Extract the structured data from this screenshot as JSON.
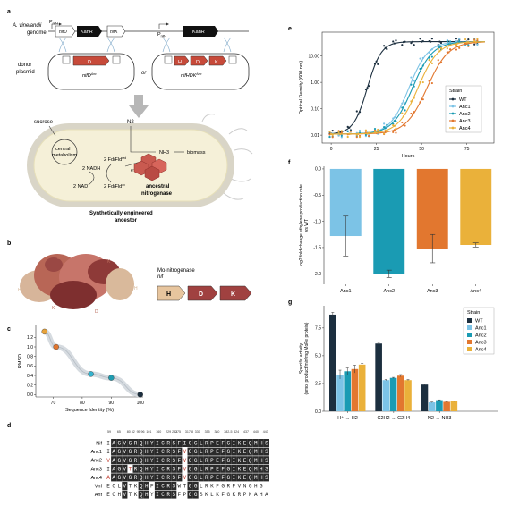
{
  "panel_letters": {
    "a": "a",
    "b": "b",
    "c": "c",
    "d": "d",
    "e": "e",
    "f": "f",
    "g": "g"
  },
  "panel_a": {
    "organism": "A. vinelandii",
    "genome_label": "genome",
    "donor": "donor",
    "plasmid": "plasmid",
    "promoter": "P",
    "promoter_sub": "nifH",
    "gene_nifU": "nifU",
    "gene_kanr": "KanR",
    "gene_nifK": "nifK",
    "gene_D": "D",
    "gene_H": "H",
    "gene_K": "K",
    "plasmid_left": "nifD",
    "plasmid_left_sup": "Anc",
    "plasmid_right": "nifHDK",
    "plasmid_right_sup": "Anc",
    "or_label": "or",
    "sucrose": "sucrose",
    "central_metabolism_1": "central",
    "central_metabolism_2": "metabolism",
    "n2": "N2",
    "nh3": "NH3",
    "biomass": "biomass",
    "nadh": "2 NADH",
    "nad": "2 NAD",
    "nad_sup": "+",
    "fd_red": "2 Fd/Fld",
    "fd_red_sup": "red",
    "fd_ox": "2 Fd/Fld",
    "fd_ox_sup": "ox",
    "electron": "e",
    "electron_sup": "-",
    "ancestral_1": "ancestral",
    "ancestral_2": "nitrogenase",
    "caption_1": "Synthetically engineered",
    "caption_2": "ancestor"
  },
  "panel_b": {
    "label_D1": "D",
    "label_K1": "K",
    "label_H1": "H",
    "label_H2": "H",
    "label_K2": "K",
    "label_D2": "D",
    "title": "Mo-nitrogenase",
    "subtitle": "nif",
    "genes": [
      "H",
      "D",
      "K"
    ]
  },
  "chart_data": [
    {
      "id": "c",
      "type": "scatter",
      "xlabel": "Sequence Identity (%)",
      "ylabel": "RMSD",
      "xlim": [
        64,
        101
      ],
      "ylim": [
        -0.05,
        1.45
      ],
      "xticks": [
        70,
        80,
        90,
        100
      ],
      "yticks": [
        0.0,
        0.2,
        0.4,
        0.6,
        0.8,
        1.0,
        1.2
      ],
      "points": [
        {
          "x": 67,
          "y": 1.32,
          "color": "#e8a33a"
        },
        {
          "x": 71,
          "y": 1.0,
          "color": "#e2772f"
        },
        {
          "x": 83,
          "y": 0.43,
          "color": "#34b3cf"
        },
        {
          "x": 90,
          "y": 0.35,
          "color": "#1f9bb0"
        },
        {
          "x": 100,
          "y": 0.0,
          "color": "#1c2f3f"
        }
      ]
    },
    {
      "id": "e",
      "type": "scatter",
      "xlabel": "Hours",
      "ylabel": "Optical Density (600 nm)",
      "log_y": true,
      "xlim": [
        -5,
        90
      ],
      "ylim": [
        0.005,
        80
      ],
      "xticks": [
        0,
        25,
        50,
        75
      ],
      "yticks": [
        0.01,
        0.1,
        1.0,
        10.0
      ],
      "ytick_labels": [
        "0.01",
        "0.10",
        "1.00",
        "10.00"
      ],
      "legend_title": "Strain",
      "legend_position": "right",
      "series": [
        {
          "name": "WT",
          "color": "#1c2f3f",
          "midpoint": 20,
          "rate": 0.26,
          "lag": 0
        },
        {
          "name": "Anc1",
          "color": "#7cc3e6",
          "midpoint": 43,
          "rate": 0.19,
          "lag": 0
        },
        {
          "name": "Anc2",
          "color": "#1a9bb3",
          "midpoint": 45,
          "rate": 0.18,
          "lag": 0
        },
        {
          "name": "Anc3",
          "color": "#e2772f",
          "midpoint": 53,
          "rate": 0.17,
          "lag": 0
        },
        {
          "name": "Anc4",
          "color": "#eab13a",
          "midpoint": 48,
          "rate": 0.18,
          "lag": 0
        }
      ],
      "y_min_value": 0.011,
      "y_max_value": 35
    },
    {
      "id": "f",
      "type": "bar",
      "ylabel": "log2 fold change ethylene production rate vs WT",
      "ylabel_1": "log2 fold change ethylene production rate",
      "ylabel_2": "vs WT",
      "categories": [
        "Anc1",
        "Anc2",
        "Anc3",
        "Anc4"
      ],
      "values": [
        -1.28,
        -2.0,
        -1.52,
        -1.45
      ],
      "errors": [
        0.38,
        0.07,
        0.27,
        0.04
      ],
      "colors": [
        "#7cc3e6",
        "#1a9bb3",
        "#e2772f",
        "#eab13a"
      ],
      "ylim": [
        -2.2,
        0.05
      ],
      "yticks": [
        0.0,
        -0.5,
        -1.0,
        -1.5,
        -2.0
      ],
      "ytick_labels": [
        "0.0",
        "-0.5",
        "-1.0",
        "-1.5",
        "-2.0"
      ]
    },
    {
      "id": "g",
      "type": "bar",
      "ylabel": "Specific activity (nmol product/min/mg MoFe protein)",
      "ylabel_1": "Specific activity",
      "ylabel_2": "(nmol product/min/mg MoFe protein)",
      "categories": [
        "H⁺ → H2",
        "C2H2 → C2H4",
        "N2 → NH3"
      ],
      "ylim": [
        0,
        9.5
      ],
      "yticks": [
        0.0,
        2.5,
        5.0,
        7.5
      ],
      "ytick_labels": [
        "0.0",
        "2.5",
        "5.0",
        "7.5"
      ],
      "legend_title": "Strain",
      "legend_position": "top-right",
      "series": [
        {
          "name": "WT",
          "color": "#1c2f3f",
          "values": [
            8.7,
            6.1,
            2.4
          ],
          "errors": [
            0.2,
            0.1,
            0.05
          ]
        },
        {
          "name": "Anc1",
          "color": "#7cc3e6",
          "values": [
            3.3,
            2.8,
            0.8
          ],
          "errors": [
            0.4,
            0.05,
            0.03
          ]
        },
        {
          "name": "Anc2",
          "color": "#1a9bb3",
          "values": [
            3.6,
            3.0,
            1.0
          ],
          "errors": [
            0.3,
            0.05,
            0.03
          ]
        },
        {
          "name": "Anc3",
          "color": "#e2772f",
          "values": [
            3.8,
            3.2,
            0.85
          ],
          "errors": [
            0.35,
            0.1,
            0.03
          ]
        },
        {
          "name": "Anc4",
          "color": "#eab13a",
          "values": [
            4.2,
            2.8,
            0.9
          ],
          "errors": [
            0.1,
            0.05,
            0.03
          ]
        }
      ]
    }
  ],
  "panel_d": {
    "positions": [
      "59",
      "65",
      "80 82",
      "95 96",
      "101",
      "160",
      "229 231",
      "275",
      "317-8",
      "330",
      "355",
      "380",
      "382-5",
      "424",
      "437",
      "440",
      "443"
    ],
    "rows": [
      {
        "name": "Nif",
        "seq": "IAGVGRQHYICRSFIGGLRPEFGIKEQMHS"
      },
      {
        "name": "Anc1",
        "seq": "IAGVGRQHYICRSFVGGLRPEFGIKEQMHS"
      },
      {
        "name": "Anc2",
        "seq": "VAGVGRQHYICRSFVGGLRPEFGIKEQMHS"
      },
      {
        "name": "Anc3",
        "seq": "IAGVTRQHYICRSFVGGLRPEFGIKEQMHS"
      },
      {
        "name": "Anc4",
        "seq": "AAGVGRQHYICRSFVGGLRPEFGIKEQMHS"
      },
      {
        "name": "Vnf",
        "seq": "ECLVTKQHFICRSWTGGLRKFGRPVNGHG"
      },
      {
        "name": "Anf",
        "seq": "ECHVTKQHYICRSFPGGSKLKFGKRPNAHA"
      }
    ]
  }
}
